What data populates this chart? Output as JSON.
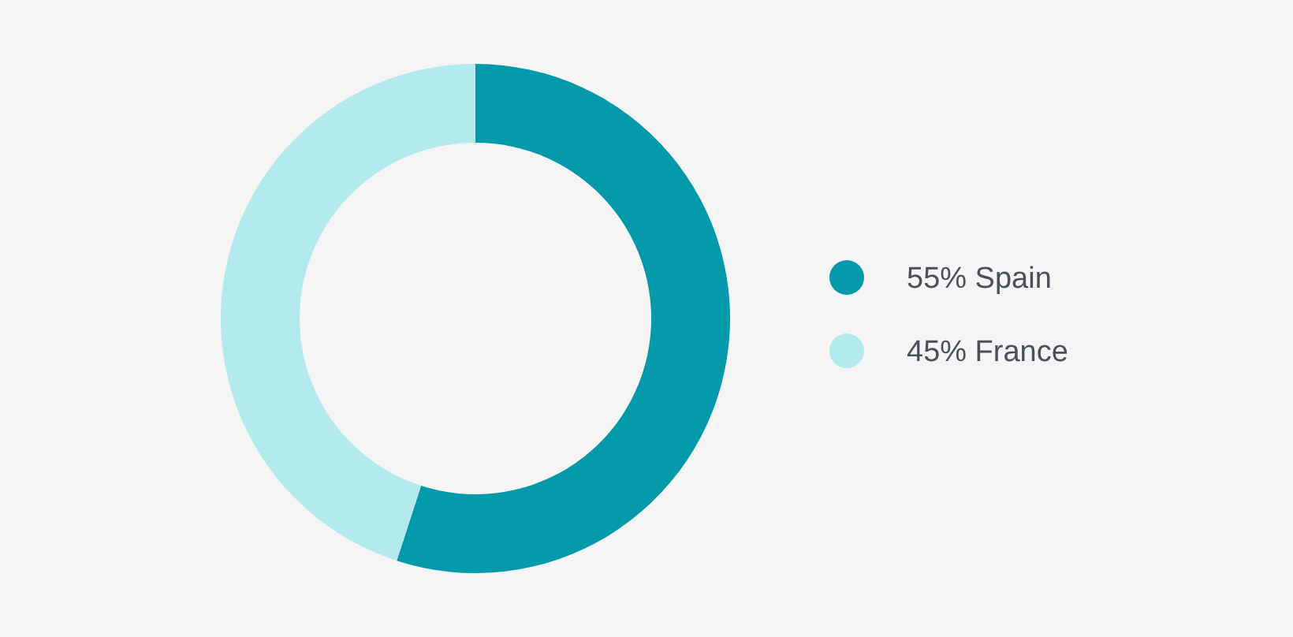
{
  "chart_data": {
    "type": "donut",
    "categories": [
      "Spain",
      "France"
    ],
    "values": [
      55,
      45
    ],
    "value_labels": [
      "55%",
      "45%"
    ],
    "colors": [
      "#029aab",
      "#b3eaee"
    ],
    "legend": "right"
  }
}
